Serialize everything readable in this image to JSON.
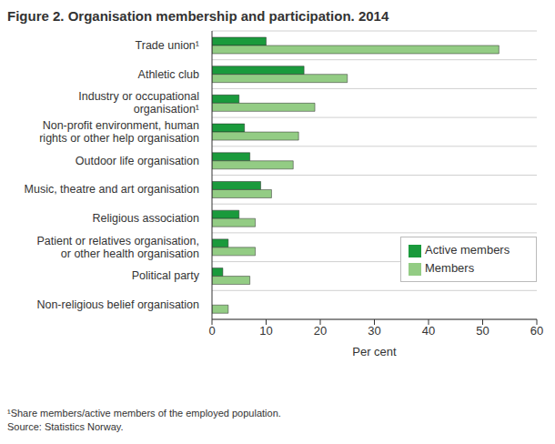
{
  "chart_data": {
    "type": "bar",
    "orientation": "horizontal",
    "title": "Figure 2. Organisation membership and participation. 2014",
    "categories": [
      "Trade union¹",
      "Athletic club",
      "Industry or occupational organisation¹",
      "Non-profit environment, human rights or other help organisation",
      "Outdoor life organisation",
      "Music, theatre and art organisation",
      "Religious association",
      "Patient or relatives organisation, or other health organisation",
      "Political party",
      "Non-religious belief organisation"
    ],
    "series": [
      {
        "name": "Active members",
        "color": "#1a9a3c",
        "values": [
          10,
          17,
          5,
          6,
          7,
          9,
          5,
          3,
          2,
          0
        ]
      },
      {
        "name": "Members",
        "color": "#93cc84",
        "values": [
          53,
          25,
          19,
          16,
          15,
          11,
          8,
          8,
          7,
          3
        ]
      }
    ],
    "xlabel": "Per cent",
    "xlim": [
      0,
      60
    ],
    "xticks": [
      0,
      10,
      20,
      30,
      40,
      50,
      60
    ],
    "grid": true,
    "legend": "right",
    "footnote": "¹Share members/active members of the employed population.",
    "source": "Source: Statistics Norway."
  }
}
